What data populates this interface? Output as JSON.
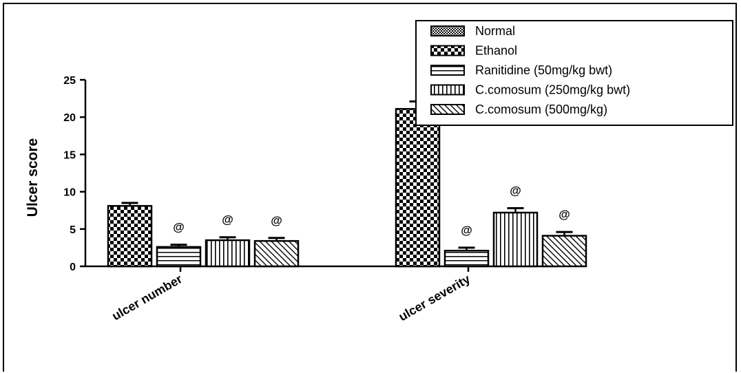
{
  "chart_data": {
    "type": "bar",
    "ylabel": "Ulcer score",
    "xlabel": "",
    "ylim": [
      0,
      25
    ],
    "yticks": [
      0,
      5,
      10,
      15,
      20,
      25
    ],
    "categories": [
      "ulcer number",
      "ulcer severity"
    ],
    "legend_position": "top-right",
    "series": [
      {
        "name": "Normal",
        "values": [
          0,
          0
        ],
        "errors": [
          0,
          0
        ],
        "annotations": [
          "",
          ""
        ],
        "pattern": "fine-check"
      },
      {
        "name": "Ethanol",
        "values": [
          8.1,
          21.1
        ],
        "errors": [
          0.4,
          1.0
        ],
        "annotations": [
          "",
          ""
        ],
        "pattern": "check"
      },
      {
        "name": "Ranitidine (50mg/kg bwt)",
        "values": [
          2.6,
          2.1
        ],
        "errors": [
          0.3,
          0.4
        ],
        "annotations": [
          "@",
          "@"
        ],
        "pattern": "hlines"
      },
      {
        "name": "C.comosum (250mg/kg bwt)",
        "values": [
          3.5,
          7.2
        ],
        "errors": [
          0.4,
          0.6
        ],
        "annotations": [
          "@",
          "@"
        ],
        "pattern": "vlines"
      },
      {
        "name": "C.comosum (500mg/kg)",
        "values": [
          3.4,
          4.1
        ],
        "errors": [
          0.4,
          0.5
        ],
        "annotations": [
          "@",
          "@"
        ],
        "pattern": "diag"
      }
    ]
  }
}
